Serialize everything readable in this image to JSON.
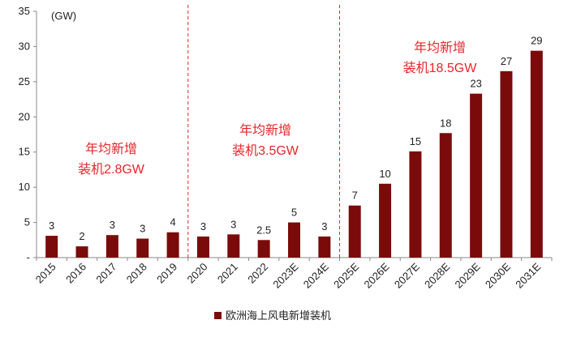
{
  "chart_data": {
    "type": "bar",
    "unit_label": "(GW)",
    "categories": [
      "2015",
      "2016",
      "2017",
      "2018",
      "2019",
      "2020",
      "2021",
      "2022",
      "2023E",
      "2024E",
      "2025E",
      "2026E",
      "2027E",
      "2028E",
      "2029E",
      "2030E",
      "2031E"
    ],
    "series": [
      {
        "name": "欧洲海上风电新增装机",
        "color": "#7b0b0b",
        "values": [
          3.1,
          1.6,
          3.2,
          2.7,
          3.6,
          3.0,
          3.3,
          2.5,
          5.0,
          3.0,
          7.4,
          10.5,
          15.1,
          17.7,
          23.3,
          26.5,
          29.4
        ],
        "labels": [
          "3",
          "2",
          "3",
          "3",
          "4",
          "3",
          "3",
          "2.5",
          "5",
          "3",
          "7",
          "10",
          "15",
          "18",
          "23",
          "27",
          "29"
        ]
      }
    ],
    "ylim": [
      0,
      35
    ],
    "yticks": [
      0,
      5,
      10,
      15,
      20,
      25,
      30,
      35
    ],
    "ytick_labels": [
      "-",
      "5",
      "10",
      "15",
      "20",
      "25",
      "30",
      "35"
    ],
    "period_dividers_after_index": [
      4,
      9
    ],
    "annotations": [
      {
        "lines": [
          "年均新增",
          "装机2.8GW"
        ],
        "period": "2015-2019"
      },
      {
        "lines": [
          "年均新增",
          "装机3.5GW"
        ],
        "period": "2020-2024E"
      },
      {
        "lines": [
          "年均新增",
          "装机18.5GW"
        ],
        "period": "2025E-2031E"
      }
    ],
    "annotation_color": "#e8252a",
    "legend": {
      "label": "欧洲海上风电新增装机",
      "position": "bottom-center"
    }
  }
}
